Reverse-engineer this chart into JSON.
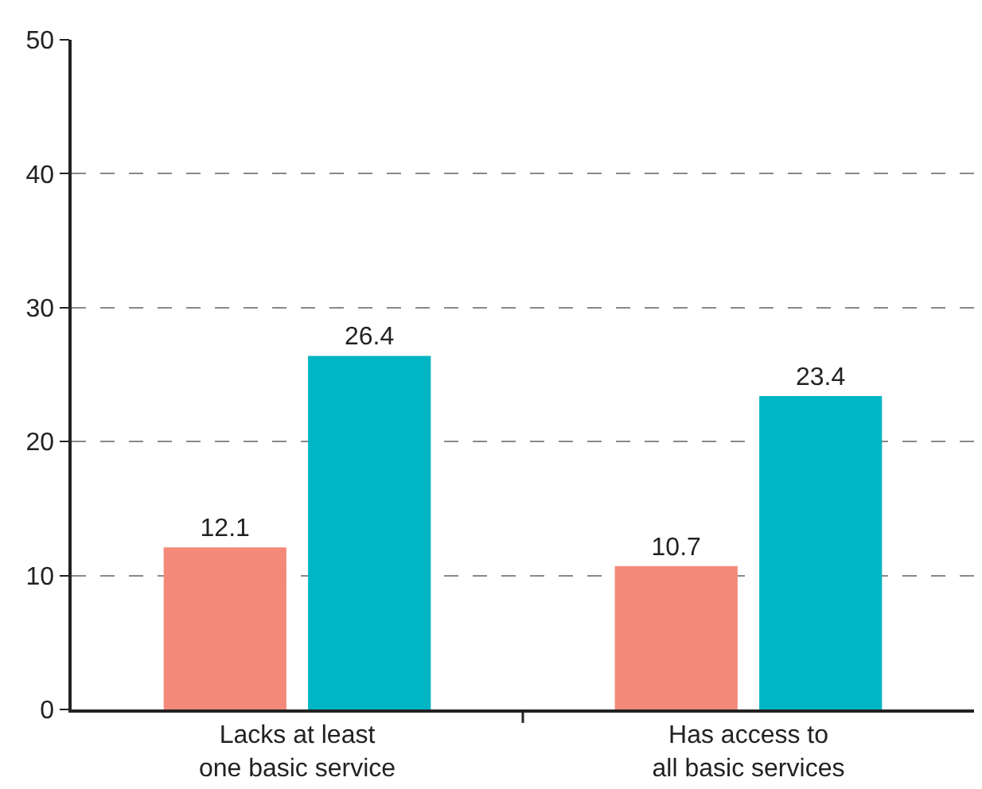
{
  "chart_data": {
    "type": "bar",
    "categories": [
      "Lacks at least\none basic service",
      "Has access to\nall basic services"
    ],
    "series": [
      {
        "color": "#f4897a",
        "values": [
          12.1,
          10.7
        ]
      },
      {
        "color": "#00b5c4",
        "values": [
          26.4,
          23.4
        ]
      }
    ],
    "ylim": [
      0,
      50
    ],
    "yticks": [
      0,
      10,
      20,
      30,
      40,
      50
    ],
    "grid": "y",
    "data_labels": true,
    "legend": false
  }
}
